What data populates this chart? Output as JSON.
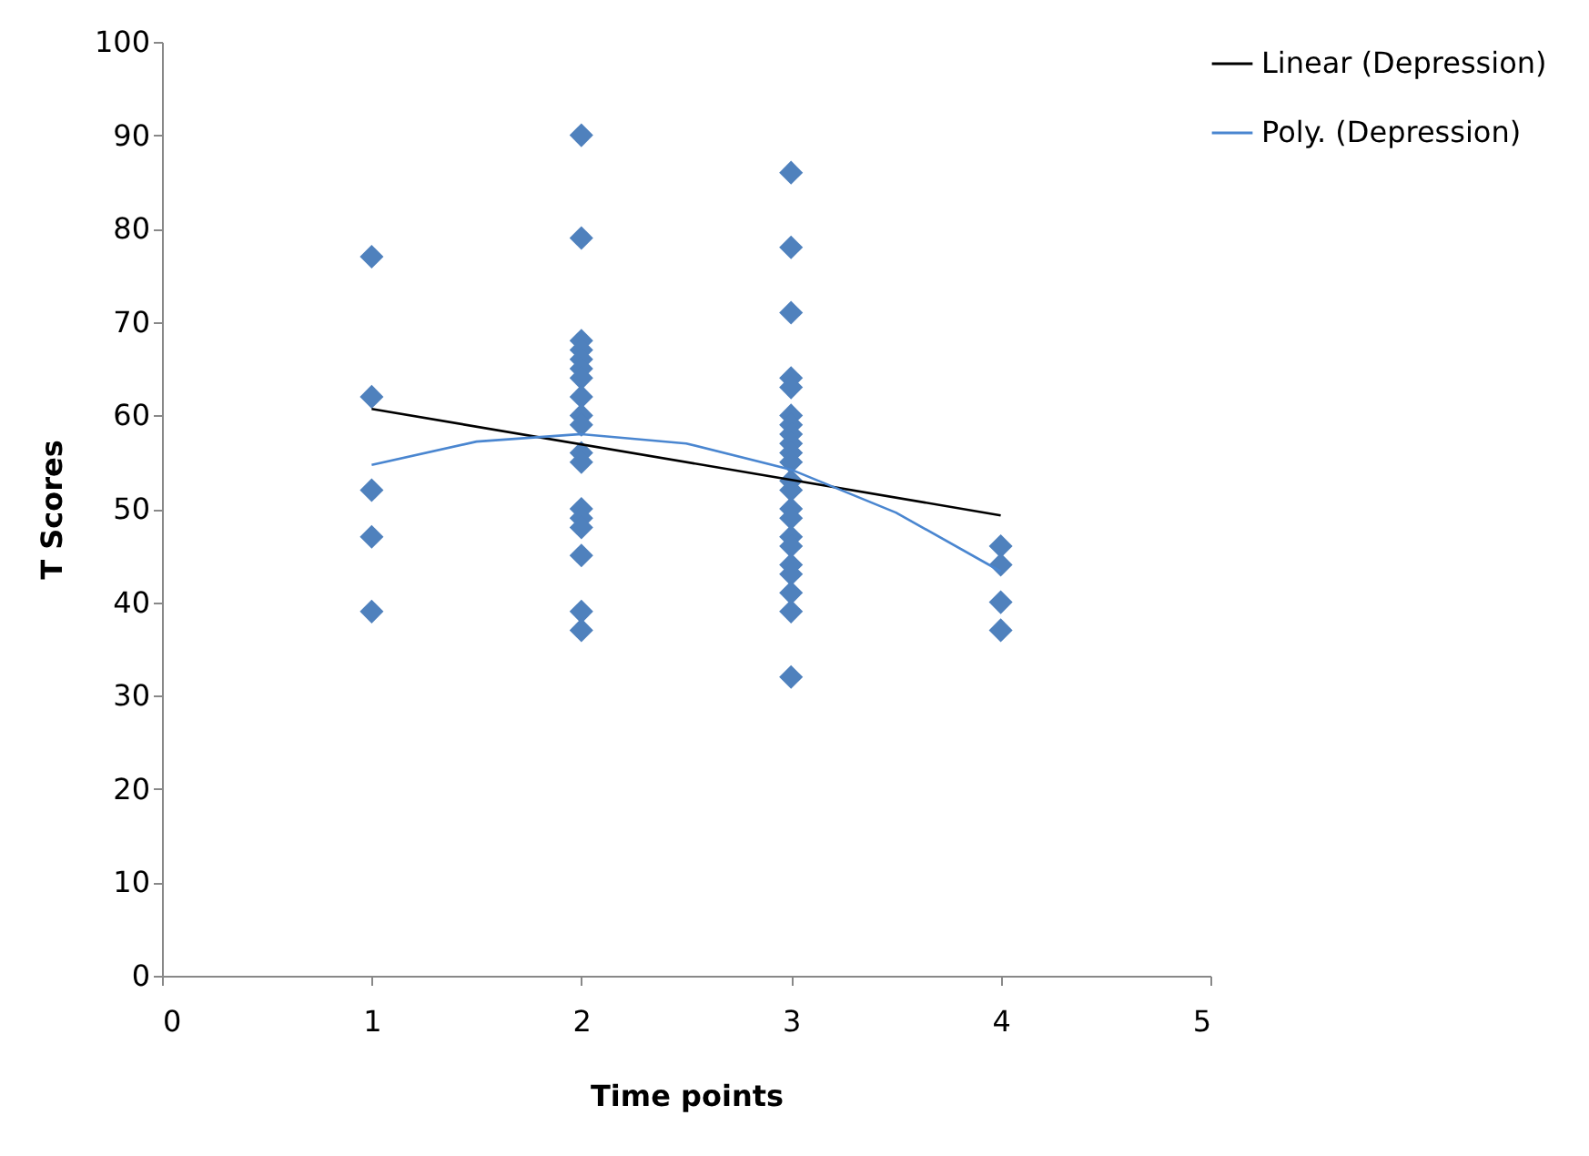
{
  "chart_data": {
    "type": "scatter",
    "xlabel": "Time points",
    "ylabel": "T Scores",
    "xlim": [
      0,
      5
    ],
    "xticks": [
      0,
      1,
      2,
      3,
      4,
      5
    ],
    "ylim": [
      0,
      100
    ],
    "yticks": [
      0,
      10,
      20,
      30,
      40,
      50,
      60,
      70,
      80,
      90,
      100
    ],
    "grid": false,
    "legend": "right",
    "series": [
      {
        "marker": "diamond",
        "color": "#4f81bd",
        "x": [
          1,
          1,
          1,
          1,
          1,
          2,
          2,
          2,
          2,
          2,
          2,
          2,
          2,
          2,
          2,
          2,
          2,
          2,
          2,
          2,
          2,
          2,
          2,
          3,
          3,
          3,
          3,
          3,
          3,
          3,
          3,
          3,
          3,
          3,
          3,
          3,
          3,
          3,
          3,
          3,
          3,
          3,
          3,
          3,
          3,
          4,
          4,
          4,
          4
        ],
        "values": [
          77,
          62,
          52,
          47,
          39,
          90,
          79,
          68,
          67,
          66,
          65,
          64,
          62,
          60,
          59,
          56,
          55,
          50,
          49,
          48,
          45,
          39,
          37,
          86,
          78,
          71,
          64,
          63,
          60,
          59,
          58,
          57,
          56,
          55,
          53,
          52,
          50,
          49,
          47,
          46,
          44,
          43,
          41,
          39,
          32,
          46,
          44,
          40,
          37
        ]
      },
      {
        "type": "line",
        "name": "Linear (Depression)",
        "color": "#000000",
        "line_style": "solid",
        "marker": "none",
        "x": [
          1,
          4
        ],
        "values": [
          60.7,
          49.3
        ]
      },
      {
        "type": "line",
        "name": "Poly. (Depression)",
        "color": "#4a86d0",
        "line_style": "solid",
        "marker": "none",
        "x": [
          1,
          1.5,
          2,
          2.5,
          3,
          3.5,
          4
        ],
        "values": [
          54.7,
          57.2,
          58.0,
          57.0,
          54.2,
          49.6,
          43.3
        ]
      }
    ]
  }
}
